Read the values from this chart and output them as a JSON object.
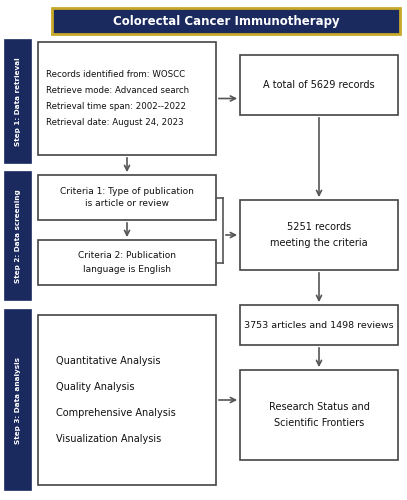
{
  "title": "Colorectal Cancer Immunotherapy",
  "title_bg": "#1b2a5e",
  "title_border": "#c8a828",
  "title_text_color": "#ffffff",
  "step_labels": [
    "Step 1: Data retrieval",
    "Step 2: Data screening",
    "Step 3: Data analysis"
  ],
  "step_bg": "#1b2a5e",
  "step_text_color": "#ffffff",
  "box_border": "#444444",
  "left_box1_lines": [
    "Records identified from: WOSCC",
    "Retrieve mode: Advanced search",
    "Retrieval time span: 2002--2022",
    "Retrieval date: August 24, 2023"
  ],
  "left_box2_lines": [
    "Criteria 1: Type of publication",
    "is article or review"
  ],
  "left_box3_lines": [
    "Criteria 2: Publication",
    "language is English"
  ],
  "left_box4_lines": [
    "Quantitative Analysis",
    "Quality Analysis",
    "Comprehensive Analysis",
    "Visualization Analysis"
  ],
  "right_box1_lines": [
    "A total of 5629 records"
  ],
  "right_box2_lines": [
    "5251 records",
    "meeting the criteria"
  ],
  "right_box3_lines": [
    "3753 articles and 1498 reviews"
  ],
  "right_box4_lines": [
    "Research Status and",
    "Scientific Frontiers"
  ],
  "arrow_color": "#555555",
  "fig_w": 4.07,
  "fig_h": 5.0,
  "dpi": 100
}
